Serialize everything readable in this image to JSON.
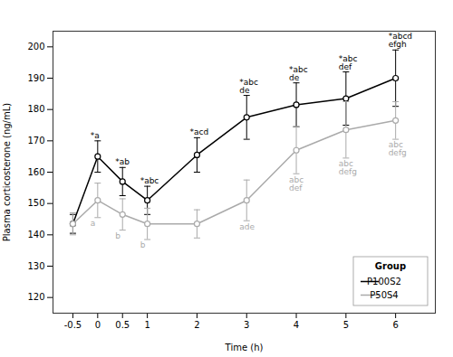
{
  "chart_data": {
    "type": "line",
    "x": [
      -0.5,
      0,
      0.5,
      1,
      2,
      3,
      4,
      5,
      6
    ],
    "series": [
      {
        "name": "P100S2",
        "color": "#000000",
        "marker": "circle",
        "values": [
          143.5,
          165.0,
          157.0,
          151.0,
          165.5,
          177.5,
          181.5,
          183.5,
          190.0
        ],
        "errors": [
          3.0,
          5.0,
          4.5,
          4.5,
          5.5,
          7.0,
          7.0,
          8.5,
          9.0
        ],
        "annotations": [
          {
            "x": 0,
            "text": "*a"
          },
          {
            "x": 0.5,
            "text": "*ab"
          },
          {
            "x": 1,
            "text": "*abc"
          },
          {
            "x": 2,
            "text": "*acd"
          },
          {
            "x": 3,
            "text": "*abc\nde"
          },
          {
            "x": 4,
            "text": "*abc\nde"
          },
          {
            "x": 5,
            "text": "*abc\ndef"
          },
          {
            "x": 6,
            "text": "*abcd\nefgh"
          }
        ]
      },
      {
        "name": "P50S4",
        "color": "#aaaaaa",
        "marker": "circle",
        "values": [
          143.5,
          151.0,
          146.5,
          143.5,
          143.5,
          151.0,
          167.0,
          173.5,
          176.5
        ],
        "errors": [
          3.5,
          5.5,
          5.0,
          5.0,
          4.5,
          6.5,
          7.5,
          9.0,
          6.0
        ],
        "annotations": [
          {
            "x": 0,
            "text": "a"
          },
          {
            "x": 0.5,
            "text": "b"
          },
          {
            "x": 1,
            "text": "b"
          },
          {
            "x": 3,
            "text": "ade"
          },
          {
            "x": 4,
            "text": "abc\ndef"
          },
          {
            "x": 5,
            "text": "abc\ndefg"
          },
          {
            "x": 6,
            "text": "abc\ndefg"
          }
        ]
      }
    ],
    "xlabel": "Time (h)",
    "ylabel": "Plasma corticosterone (ng/mL)",
    "xlim": [
      -0.9,
      6.8
    ],
    "xticks": [
      -0.5,
      0,
      0.5,
      1,
      2,
      3,
      4,
      5,
      6
    ],
    "ylim": [
      115,
      205
    ],
    "yticks": [
      120,
      130,
      140,
      150,
      160,
      170,
      180,
      190,
      200
    ],
    "grid": false,
    "legend": "lower right",
    "legend_title": "Group"
  }
}
